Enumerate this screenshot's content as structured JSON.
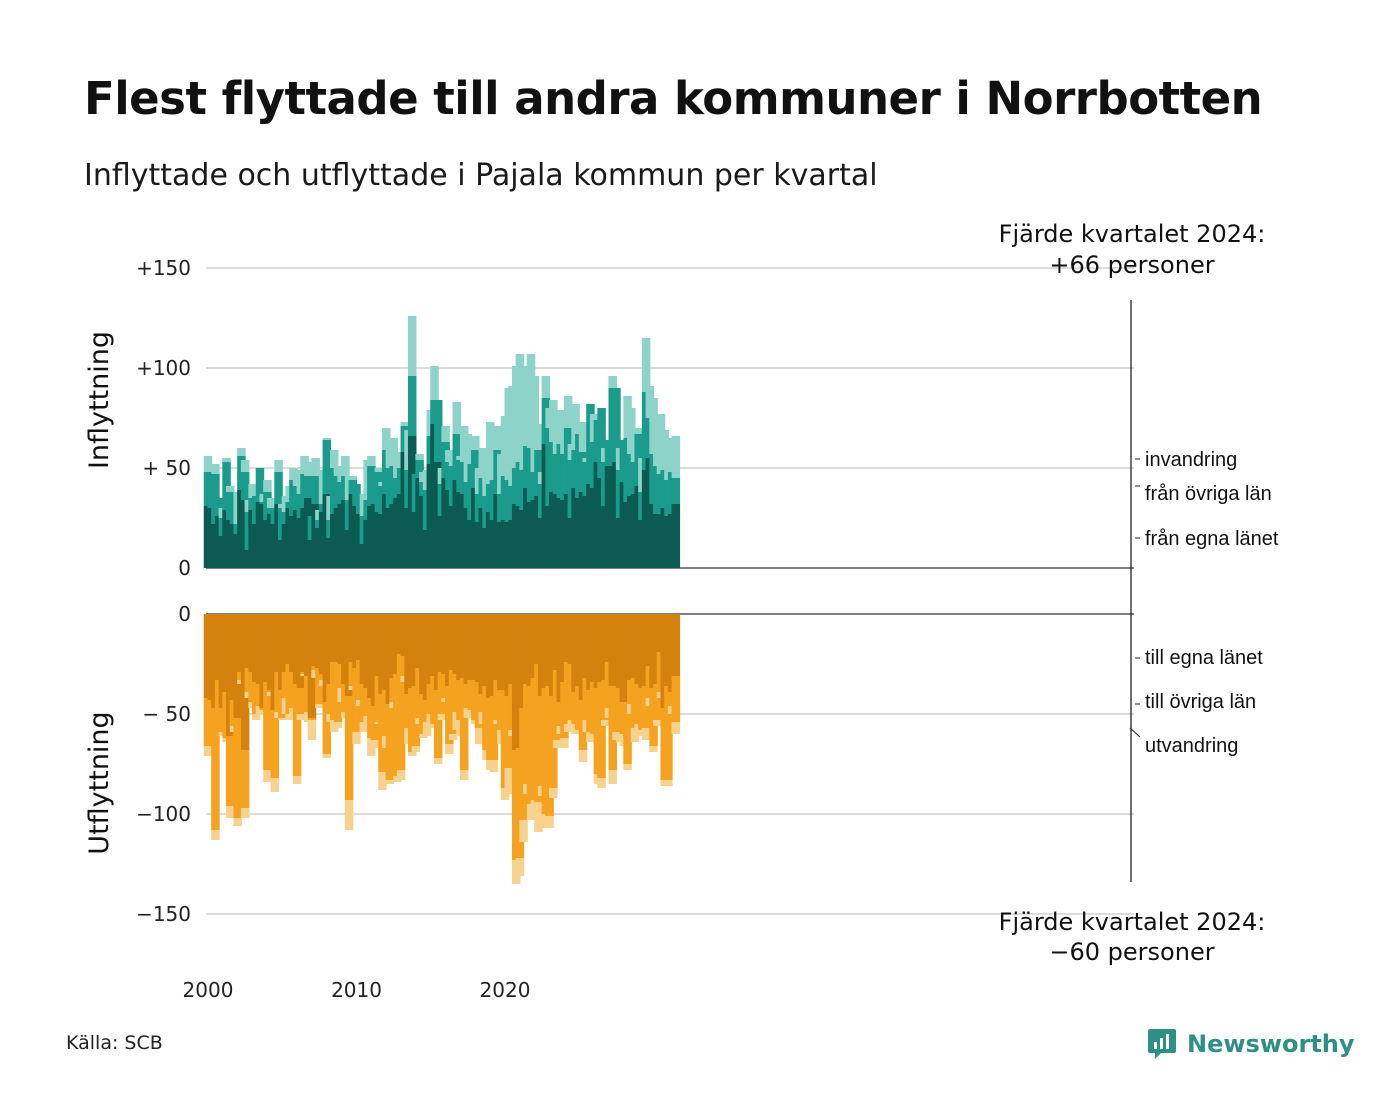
{
  "title": "Flest flyttade till andra kommuner i Norrbotten",
  "subtitle": "Inflyttade och utflyttade i Pajala kommun per kvartal",
  "source": "Källa: SCB",
  "brand": {
    "name": "Newsworthy",
    "icon": "newsworthy-logo-icon"
  },
  "colors": {
    "in_egna": "#0c5b52",
    "in_ovriga": "#1a9b8c",
    "in_invandring": "#8dd3ca",
    "ut_egna": "#d4820d",
    "ut_ovriga": "#f4a21f",
    "ut_utvandring": "#f7d28f",
    "grid": "#dcdcdc"
  },
  "annotations": {
    "top_line1": "Fjärde kvartalet 2024:",
    "top_line2": "+66 personer",
    "bottom_line1": "Fjärde kvartalet 2024:",
    "bottom_line2": "−60 personer"
  },
  "chart_data": [
    {
      "type": "bar",
      "stacked": true,
      "ylabel": "Inflyttning",
      "ylim": [
        0,
        150
      ],
      "yticks": [
        {
          "value": 150,
          "label": "+150"
        },
        {
          "value": 100,
          "label": "+100"
        },
        {
          "value": 50,
          "label": "+ 50"
        },
        {
          "value": 0,
          "label": "0"
        }
      ],
      "x_start": 2000,
      "x_step": 0.25,
      "xticks": [
        {
          "value": 2000,
          "label": "2000"
        },
        {
          "value": 2010,
          "label": "2010"
        },
        {
          "value": 2020,
          "label": "2020"
        }
      ],
      "series": [
        {
          "name": "från egna länet",
          "color_key": "in_egna",
          "values": [
            31,
            30,
            22,
            26,
            16,
            29,
            24,
            22,
            17,
            39,
            34,
            9,
            29,
            22,
            33,
            32,
            24,
            27,
            22,
            32,
            14,
            22,
            30,
            26,
            29,
            25,
            30,
            35,
            14,
            32,
            20,
            28,
            37,
            15,
            27,
            30,
            32,
            34,
            19,
            37,
            31,
            27,
            12,
            24,
            31,
            32,
            28,
            27,
            37,
            30,
            32,
            35,
            37,
            58,
            30,
            66,
            28,
            45,
            36,
            19,
            52,
            72,
            53,
            26,
            45,
            39,
            31,
            44,
            38,
            37,
            30,
            24,
            40,
            23,
            30,
            20,
            28,
            24,
            37,
            23,
            24,
            23,
            24,
            32,
            31,
            29,
            40,
            33,
            34,
            36,
            25,
            62,
            31,
            38,
            37,
            35,
            34,
            37,
            25,
            40,
            35,
            38,
            36,
            42,
            40,
            53,
            45,
            31,
            51,
            51,
            53,
            25,
            43,
            33,
            36,
            37,
            41,
            24,
            49,
            55,
            32,
            27,
            27,
            30,
            26,
            27,
            32
          ]
        },
        {
          "name": "från övriga län",
          "color_key": "in_ovriga",
          "values": [
            17,
            16,
            25,
            9,
            9,
            24,
            14,
            16,
            5,
            17,
            14,
            19,
            6,
            14,
            17,
            1,
            14,
            3,
            6,
            16,
            16,
            6,
            3,
            18,
            12,
            12,
            17,
            11,
            12,
            14,
            4,
            4,
            27,
            9,
            23,
            16,
            11,
            12,
            15,
            7,
            11,
            8,
            14,
            10,
            20,
            13,
            20,
            14,
            22,
            20,
            19,
            10,
            13,
            13,
            19,
            30,
            19,
            9,
            7,
            20,
            14,
            12,
            31,
            16,
            18,
            14,
            20,
            23,
            16,
            16,
            13,
            28,
            19,
            14,
            15,
            16,
            14,
            20,
            22,
            14,
            22,
            21,
            17,
            18,
            22,
            20,
            21,
            27,
            14,
            23,
            17,
            23,
            39,
            25,
            20,
            27,
            23,
            33,
            29,
            19,
            32,
            20,
            17,
            40,
            23,
            21,
            35,
            22,
            13,
            39,
            37,
            24,
            21,
            32,
            21,
            16,
            26,
            14,
            39,
            20,
            25,
            24,
            20,
            19,
            18,
            21,
            13
          ]
        },
        {
          "name": "invandring",
          "color_key": "in_invandring",
          "values": [
            8,
            0,
            5,
            0,
            5,
            2,
            3,
            0,
            16,
            4,
            6,
            6,
            7,
            0,
            0,
            4,
            6,
            5,
            0,
            6,
            2,
            8,
            8,
            6,
            8,
            4,
            9,
            7,
            0,
            9,
            5,
            17,
            1,
            12,
            9,
            5,
            7,
            10,
            12,
            2,
            0,
            0,
            11,
            20,
            5,
            0,
            2,
            2,
            11,
            10,
            14,
            13,
            0,
            2,
            20,
            30,
            0,
            3,
            5,
            10,
            13,
            17,
            0,
            8,
            8,
            6,
            4,
            16,
            2,
            18,
            24,
            6,
            7,
            13,
            15,
            23,
            31,
            26,
            12,
            20,
            30,
            46,
            50,
            51,
            54,
            20,
            40,
            47,
            48,
            13,
            6,
            11,
            10,
            21,
            19,
            17,
            14,
            16,
            8,
            23,
            0,
            15,
            2,
            0,
            14,
            0,
            0,
            7,
            0,
            6,
            0,
            11,
            0,
            21,
            23,
            8,
            3,
            17,
            27,
            16,
            28,
            12,
            30,
            20,
            18,
            17,
            21
          ]
        }
      ]
    },
    {
      "type": "bar",
      "stacked": true,
      "ylabel": "Utflyttning",
      "ylim": [
        -150,
        0
      ],
      "yticks": [
        {
          "value": 0,
          "label": "0"
        },
        {
          "value": -50,
          "label": "− 50"
        },
        {
          "value": -100,
          "label": "−100"
        },
        {
          "value": -150,
          "label": "−150"
        }
      ],
      "x_start": 2000,
      "x_step": 0.25,
      "series": [
        {
          "name": "till egna länet",
          "color_key": "ut_egna",
          "values": [
            -42,
            -43,
            -47,
            -33,
            -47,
            -39,
            -61,
            -43,
            -52,
            -29,
            -68,
            -27,
            -29,
            -34,
            -35,
            -47,
            -34,
            -38,
            -48,
            -29,
            -38,
            -29,
            -25,
            -29,
            -35,
            -37,
            -29,
            -31,
            -52,
            -26,
            -27,
            -30,
            -44,
            -35,
            -24,
            -24,
            -25,
            -35,
            -41,
            -24,
            -27,
            -23,
            -35,
            -37,
            -42,
            -46,
            -31,
            -40,
            -38,
            -45,
            -32,
            -30,
            -20,
            -21,
            -40,
            -37,
            -36,
            -27,
            -40,
            -43,
            -35,
            -31,
            -38,
            -29,
            -30,
            -36,
            -28,
            -30,
            -33,
            -32,
            -35,
            -33,
            -33,
            -34,
            -40,
            -36,
            -42,
            -41,
            -33,
            -38,
            -38,
            -41,
            -35,
            -68,
            -67,
            -47,
            -35,
            -36,
            -32,
            -25,
            -41,
            -37,
            -36,
            -41,
            -28,
            -44,
            -34,
            -24,
            -25,
            -39,
            -36,
            -43,
            -32,
            -38,
            -34,
            -37,
            -34,
            -33,
            -24,
            -36,
            -36,
            -37,
            -44,
            -44,
            -33,
            -32,
            -35,
            -37,
            -36,
            -26,
            -37,
            -35,
            -19,
            -47,
            -36,
            -39,
            -31
          ]
        },
        {
          "name": "till övriga län",
          "color_key": "ut_ovriga",
          "values": [
            -24,
            -12,
            -61,
            -27,
            -12,
            -23,
            -35,
            -13,
            -50,
            -4,
            -29,
            -12,
            -15,
            -16,
            -11,
            -1,
            -44,
            -1,
            -34,
            -20,
            -14,
            -13,
            -25,
            -18,
            -46,
            -13,
            -1,
            -18,
            -1,
            -2,
            -18,
            -3,
            -26,
            -15,
            -29,
            -30,
            -12,
            -14,
            -52,
            -12,
            -32,
            -20,
            -19,
            -14,
            -20,
            -17,
            -23,
            -39,
            -23,
            -38,
            -12,
            -51,
            -58,
            -10,
            -17,
            -32,
            -30,
            -25,
            -20,
            -11,
            -15,
            -24,
            -34,
            -21,
            -12,
            -29,
            -32,
            -19,
            -20,
            -46,
            -12,
            -15,
            -20,
            -23,
            -9,
            -32,
            -31,
            -32,
            -20,
            -20,
            -49,
            -36,
            -23,
            -55,
            -55,
            -56,
            -50,
            -59,
            -61,
            -69,
            -45,
            -63,
            -65,
            -46,
            -35,
            -12,
            -28,
            -31,
            -28,
            -16,
            -22,
            -25,
            -21,
            -21,
            -26,
            -43,
            -48,
            -20,
            -23,
            -42,
            -23,
            -22,
            -16,
            -31,
            -12,
            -25,
            -20,
            -21,
            -21,
            -16,
            -29,
            -18,
            -20,
            -36,
            -47,
            -7,
            -23
          ]
        },
        {
          "name": "utvandring",
          "color_key": "ut_utvandring",
          "values": [
            -5,
            0,
            -5,
            0,
            -2,
            -2,
            -6,
            -3,
            -4,
            -2,
            -5,
            -3,
            -3,
            -3,
            -4,
            -1,
            -6,
            -2,
            -7,
            -3,
            -1,
            -8,
            -3,
            -5,
            -4,
            -3,
            -1,
            -5,
            -10,
            -4,
            -2,
            -3,
            -2,
            -4,
            -6,
            -3,
            -7,
            -3,
            -15,
            -2,
            -6,
            -3,
            -5,
            -6,
            -9,
            -4,
            -1,
            -9,
            -6,
            -2,
            -3,
            -3,
            -5,
            -3,
            -8,
            -2,
            -3,
            -3,
            -2,
            -7,
            -5,
            -2,
            -3,
            -3,
            -2,
            -5,
            -3,
            -9,
            -8,
            -5,
            -5,
            -4,
            -2,
            -8,
            -6,
            -5,
            -5,
            -6,
            -2,
            -7,
            -6,
            -13,
            -3,
            -12,
            -9,
            -11,
            -5,
            -8,
            -3,
            -15,
            -5,
            -7,
            -6,
            -5,
            -4,
            -4,
            -5,
            -4,
            -6,
            -5,
            -2,
            -6,
            -6,
            -5,
            -4,
            -5,
            -5,
            -3,
            -5,
            -7,
            -4,
            -5,
            -6,
            -3,
            -5,
            -7,
            -4,
            -3,
            -6,
            -4,
            -3,
            -3,
            -3,
            -3,
            -3,
            -4,
            -6
          ]
        }
      ]
    }
  ]
}
